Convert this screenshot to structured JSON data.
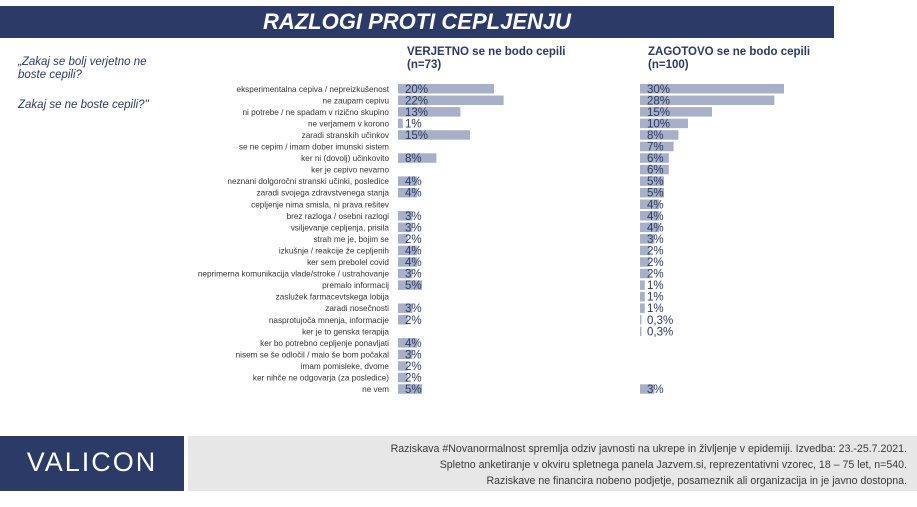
{
  "header": {
    "title": "RAZLOGI PROTI CEPLJENJU"
  },
  "question": {
    "line1": "„Zakaj se bolj verjetno ne boste cepili?",
    "line2": "Zakaj se ne boste cepili?\""
  },
  "columns": {
    "left": {
      "title": "VERJETNO  se ne bodo cepili",
      "n": "(n=73)"
    },
    "right": {
      "title": "ZAGOTOVO  se ne bodo cepili",
      "n": "(n=100)"
    }
  },
  "colors": {
    "navy": "#2b3a67",
    "bar": "#a7b0c8",
    "footer_bg": "#e7e7e7"
  },
  "chart_data": {
    "type": "bar",
    "orientation": "horizontal",
    "categories": [
      "eksperimentalna cepiva / nepreizkušenost",
      "ne zaupam cepivu",
      "ni potrebe / ne spadam v rizično skupino",
      "ne verjamem v korono",
      "zaradi stranskih učinkov",
      "se ne cepim / imam dober imunski sistem",
      "ker ni (dovolj) učinkovito",
      "ker je cepivo nevarno",
      "neznani dolgoročni stranski učinki, posledice",
      "zaradi svojega zdravstvenega stanja",
      "cepljenje nima smisla, ni prava rešitev",
      "brez razloga / osebni razlogi",
      "vsiljevanje cepljenja, prisila",
      "strah me je, bojim se",
      "izkušnje / reakcije že cepljenih",
      "ker sem prebolel covid",
      "neprimerna komunikacija vlade/stroke / ustrahovanje",
      "premalo informacij",
      "zaslužek farmacevtskega lobija",
      "zaradi nosečnosti",
      "nasprotujoča mnenja, informacije",
      "ker je to genska terapija",
      "ker bo potrebno cepljenje ponavljati",
      "nisem se še odločil / malo še bom počakal",
      "imam pomisleke, dvome",
      "ker nihče ne odgovarja (za posledice)",
      "ne vem"
    ],
    "series": [
      {
        "name": "VERJETNO  se ne bodo cepili",
        "values": [
          20,
          22,
          13,
          1,
          15,
          null,
          8,
          null,
          4,
          4,
          null,
          3,
          3,
          2,
          4,
          4,
          3,
          5,
          null,
          3,
          2,
          null,
          4,
          3,
          2,
          2,
          5
        ],
        "labels": [
          "20%",
          "22%",
          "13%",
          "1%",
          "15%",
          "",
          "8%",
          "",
          "4%",
          "4%",
          "",
          "3%",
          "3%",
          "2%",
          "4%",
          "4%",
          "3%",
          "5%",
          "",
          "3%",
          "2%",
          "",
          "4%",
          "3%",
          "2%",
          "2%",
          "5%"
        ]
      },
      {
        "name": "ZAGOTOVO  se ne bodo cepili",
        "values": [
          30,
          28,
          15,
          10,
          8,
          7,
          6,
          6,
          5,
          5,
          4,
          4,
          4,
          3,
          2,
          2,
          2,
          1,
          1,
          1,
          0.3,
          0.3,
          null,
          null,
          null,
          null,
          3
        ],
        "labels": [
          "30%",
          "28%",
          "15%",
          "10%",
          "8%",
          "7%",
          "6%",
          "6%",
          "5%",
          "5%",
          "4%",
          "4%",
          "4%",
          "3%",
          "2%",
          "2%",
          "2%",
          "1%",
          "1%",
          "1%",
          "0,3%",
          "0,3%",
          "",
          "",
          "",
          "",
          "3%"
        ]
      }
    ]
  },
  "footer": {
    "logo": "VALICON",
    "note1": "Raziskava #Novanormalnost spremlja odziv javnosti na ukrepe in življenje v epidemiji. Izvedba: 23.-25.7.2021.",
    "note2": "Spletno anketiranje v okviru spletnega panela Jazvem.si, reprezentativni vzorec,  18 – 75 let, n=540.",
    "note3": "Raziskave ne financira nobeno podjetje, posameznik ali organizacija in je javno dostopna."
  }
}
